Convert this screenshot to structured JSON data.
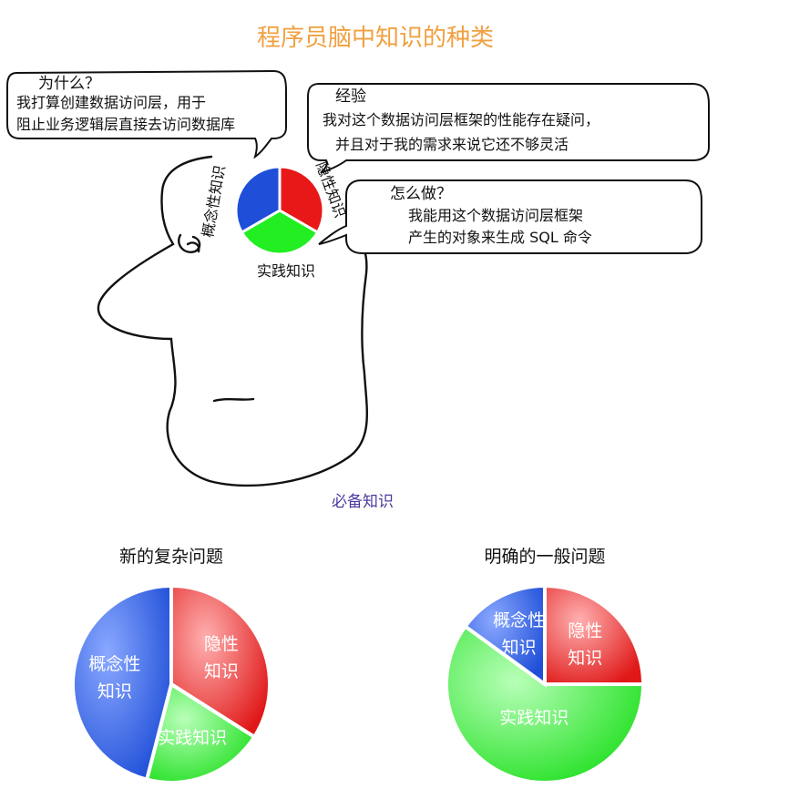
{
  "title": "程序员脑中知识的种类",
  "bubbles": {
    "why": {
      "heading": "为什么？",
      "lines": [
        "我打算创建数据访问层，用于",
        "阻止业务逻辑层直接去访问数据库"
      ]
    },
    "experience": {
      "heading": "经验",
      "lines": [
        "我对这个数据访问层框架的性能存在疑问，",
        "并且对于我的需求来说它还不够灵活"
      ]
    },
    "how": {
      "heading": "怎么做？",
      "lines": [
        "我能用这个数据访问层框架",
        "产生的对象来生成 SQL 命令"
      ]
    }
  },
  "head_pie": {
    "labels": {
      "concept": "概念性知识",
      "tacit": "隐性知识",
      "practical": "实践知识"
    }
  },
  "required_label": "必备知识",
  "colors": {
    "concept": "#2255dd",
    "tacit": "#ee2222",
    "practical": "#22ee22",
    "title": "#f0a040",
    "required": "#4a3aa0"
  },
  "chart_data": [
    {
      "type": "pie",
      "title": "新的复杂问题",
      "slices": [
        {
          "name": "隐性知识",
          "label_lines": [
            "隐性",
            "知识"
          ],
          "value": 34,
          "color": "#ee2222"
        },
        {
          "name": "实践知识",
          "label_lines": [
            "实践知识"
          ],
          "value": 20,
          "color": "#22ee22"
        },
        {
          "name": "概念性知识",
          "label_lines": [
            "概念性",
            "知识"
          ],
          "value": 46,
          "color": "#2255dd"
        }
      ]
    },
    {
      "type": "pie",
      "title": "明确的一般问题",
      "slices": [
        {
          "name": "隐性知识",
          "label_lines": [
            "隐性",
            "知识"
          ],
          "value": 25,
          "color": "#ee2222"
        },
        {
          "name": "实践知识",
          "label_lines": [
            "实践知识"
          ],
          "value": 60,
          "color": "#22ee22"
        },
        {
          "name": "概念性知识",
          "label_lines": [
            "概念性",
            "知识"
          ],
          "value": 15,
          "color": "#2255dd"
        }
      ]
    }
  ]
}
